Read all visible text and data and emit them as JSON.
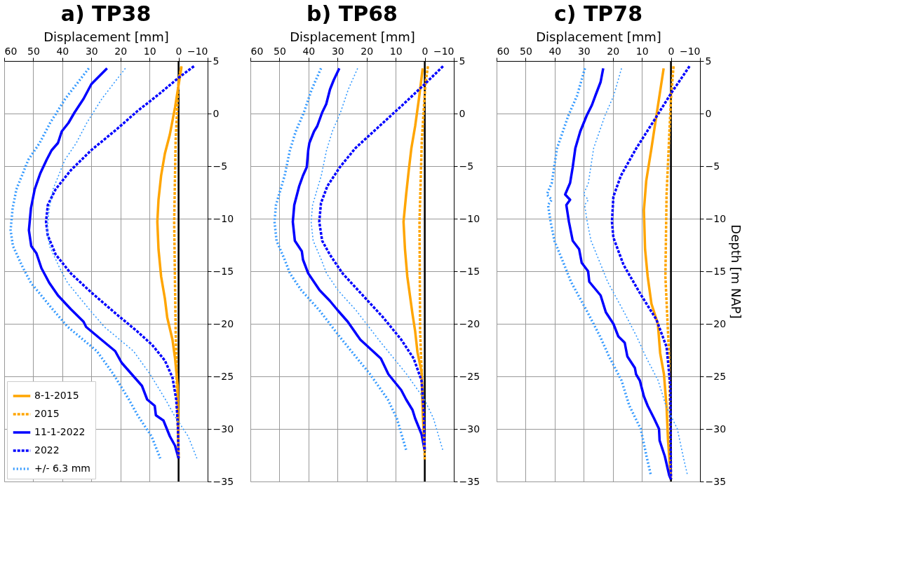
{
  "chart_data": [
    {
      "type": "line",
      "title": "a) TP38",
      "xlabel": "Displacement [mm]",
      "xlim": [
        60,
        -10
      ],
      "xticks": [
        60,
        50,
        40,
        30,
        20,
        10,
        0,
        -10
      ],
      "ylim": [
        -35,
        5
      ],
      "yticks": [
        -35,
        -30,
        -25,
        -20,
        -15,
        -10,
        -5,
        0,
        5
      ],
      "grid": true,
      "legend": "bottom left",
      "ref_lines": [
        {
          "axis": "x",
          "value": 0,
          "color": "#000000"
        }
      ],
      "series": [
        {
          "name": "8-1-2015",
          "color": "#ffa500",
          "line_style": "solid",
          "x": [
            -1.0,
            0,
            1.2,
            3.0,
            4.7,
            6.0,
            6.9,
            7.3,
            6.9,
            6.0,
            4.7,
            3.9,
            2.1,
            1.2,
            0.3,
            0
          ],
          "values": [
            4.4,
            2.7,
            0.6,
            -2.0,
            -3.8,
            -5.9,
            -8.2,
            -10.3,
            -12.9,
            -15.5,
            -17.6,
            -19.4,
            -21.5,
            -23.3,
            -25.9,
            -32.8
          ]
        },
        {
          "name": "2015",
          "color": "#ffa500",
          "line_style": "dashed",
          "x": [
            -1,
            0,
            1,
            1.5,
            1,
            0.5,
            0
          ],
          "values": [
            4.5,
            3.2,
            -2.5,
            -10.3,
            -20.7,
            -27.2,
            -32.8
          ]
        },
        {
          "name": "11-1-2022",
          "color": "#0000ff",
          "line_style": "solid",
          "x": [
            24.6,
            30,
            32.7,
            35.8,
            37.9,
            40.2,
            41.5,
            43.7,
            45.4,
            47.6,
            49.5,
            50.8,
            51.5,
            50.7,
            48.9,
            47.2,
            44.5,
            41.5,
            37.1,
            32.7,
            31.8,
            26.6,
            21.8,
            19.6,
            16.1,
            12.6,
            10.8,
            8.2,
            7.8,
            5.2,
            3.0,
            1.2,
            0
          ],
          "values": [
            4.3,
            2.8,
            1.4,
            0.1,
            -0.9,
            -1.7,
            -2.8,
            -3.5,
            -4.4,
            -5.7,
            -7.2,
            -9.0,
            -11.1,
            -12.6,
            -13.3,
            -14.7,
            -16.1,
            -17.3,
            -18.6,
            -19.8,
            -20.3,
            -21.5,
            -22.6,
            -23.7,
            -24.8,
            -25.9,
            -27.2,
            -27.8,
            -28.7,
            -29.2,
            -30.7,
            -31.6,
            -32.8
          ]
        },
        {
          "name": "2022",
          "color": "#0000ff",
          "line_style": "dashed",
          "x": [
            -5.3,
            0,
            6.5,
            14.3,
            21.3,
            30.1,
            37.1,
            42.3,
            45.0,
            45.6,
            45.0,
            42.3,
            37.1,
            30.1,
            21.3,
            14.3,
            9.1,
            4.7,
            2.1,
            0.8,
            0.2,
            0
          ],
          "values": [
            4.5,
            3.4,
            1.9,
            0.2,
            -1.5,
            -3.5,
            -5.4,
            -7.2,
            -8.7,
            -10.3,
            -11.6,
            -13.4,
            -15.2,
            -17.0,
            -19.1,
            -20.7,
            -22.0,
            -23.5,
            -25.1,
            -27.2,
            -29.8,
            -32.8
          ]
        },
        {
          "name": "+/- 6.3 mm",
          "color": "#3399ff",
          "line_style": "dotted",
          "x": [
            30.9,
            39.0,
            44.2,
            47.8,
            51.7,
            55.8,
            57.1,
            57.8,
            57.0,
            53.5,
            50.8,
            43.4,
            38.1,
            28.1,
            22.4,
            17.1,
            14.1,
            9.3,
            6.3
          ],
          "values": [
            4.3,
            1.4,
            -0.9,
            -2.8,
            -4.4,
            -7.2,
            -9.0,
            -11.1,
            -12.6,
            -14.7,
            -16.1,
            -18.6,
            -20.3,
            -22.6,
            -24.8,
            -27.2,
            -28.7,
            -30.7,
            -32.8
          ]
        },
        {
          "color": "#3399ff",
          "line_style": "dotted",
          "x": [
            18.3,
            26.4,
            31.6,
            35.2,
            39.1,
            43.2,
            44.5,
            45.2,
            44.4,
            40.9,
            38.2,
            30.8,
            25.5,
            15.5,
            9.8,
            4.5,
            1.5,
            -3.3,
            -6.3
          ],
          "values": [
            4.3,
            1.4,
            -0.9,
            -2.8,
            -4.4,
            -7.2,
            -9.0,
            -11.1,
            -12.6,
            -14.7,
            -16.1,
            -18.6,
            -20.3,
            -22.6,
            -24.8,
            -27.2,
            -28.7,
            -30.7,
            -32.8
          ]
        }
      ]
    },
    {
      "type": "line",
      "title": "b) TP68",
      "xlabel": "Displacement [mm]",
      "xlim": [
        60,
        -10
      ],
      "xticks": [
        60,
        50,
        40,
        30,
        20,
        10,
        0,
        -10
      ],
      "ylim": [
        -35,
        5
      ],
      "yticks": [
        -35,
        -30,
        -25,
        -20,
        -15,
        -10,
        -5,
        0,
        5
      ],
      "grid": true,
      "legend": "bottom left",
      "ref_lines": [
        {
          "axis": "x",
          "value": 0,
          "color": "#000000"
        }
      ],
      "series": [
        {
          "name": "8-1-2015",
          "color": "#ffa500",
          "line_style": "solid",
          "x": [
            0.7,
            2.0,
            3.3,
            4.6,
            5.5,
            6.4,
            7.3,
            6.8,
            6.0,
            4.2,
            3.3,
            2.5,
            1.1,
            0.7,
            0
          ],
          "values": [
            4.3,
            1.4,
            -1.2,
            -3.3,
            -5.4,
            -7.7,
            -10.3,
            -12.9,
            -15.5,
            -19.1,
            -20.7,
            -22.7,
            -24.6,
            -28.5,
            -32.1
          ]
        },
        {
          "name": "2015",
          "color": "#ffa500",
          "line_style": "dashed",
          "x": [
            -1.1,
            -0.2,
            1,
            1.8,
            1.6,
            0.7,
            0
          ],
          "values": [
            4.5,
            2.7,
            -2.5,
            -10.3,
            -20.7,
            -27.2,
            -32.9
          ]
        },
        {
          "name": "11-1-2022",
          "color": "#0000ff",
          "line_style": "solid",
          "x": [
            29.4,
            31.3,
            32.6,
            33.9,
            35.3,
            37.0,
            38.1,
            39.7,
            40.1,
            40.6,
            41.9,
            43.2,
            44.9,
            45.4,
            44.7,
            42.3,
            41.9,
            40.1,
            36.2,
            32.7,
            30.0,
            26.5,
            22.2,
            15.1,
            12.5,
            8.1,
            6.4,
            4.2,
            3.3,
            1.1,
            0
          ],
          "values": [
            4.3,
            3.2,
            2.3,
            0.9,
            0.1,
            -1.2,
            -1.7,
            -2.8,
            -3.5,
            -5.1,
            -5.9,
            -6.9,
            -8.7,
            -10.3,
            -12.1,
            -13.1,
            -13.9,
            -15.2,
            -16.8,
            -17.8,
            -18.7,
            -19.8,
            -21.5,
            -23.3,
            -24.8,
            -26.3,
            -27.2,
            -28.2,
            -29.0,
            -30.5,
            -32.1
          ]
        },
        {
          "name": "2022",
          "color": "#0000ff",
          "line_style": "dashed",
          "x": [
            -6.3,
            0,
            7.3,
            16.0,
            23.9,
            29.2,
            33.5,
            35.7,
            36.3,
            35.3,
            32.7,
            28.3,
            21.3,
            14.3,
            8.1,
            3.8,
            1.1,
            0.3,
            0
          ],
          "values": [
            4.5,
            2.8,
            0.9,
            -1.3,
            -3.3,
            -5.1,
            -6.9,
            -8.5,
            -10.3,
            -12.1,
            -13.4,
            -15.2,
            -17.3,
            -19.4,
            -21.5,
            -23.3,
            -25.4,
            -28.5,
            -32.1
          ]
        },
        {
          "name": "+/- 6.3 mm",
          "color": "#3399ff",
          "line_style": "dotted",
          "x": [
            35.7,
            38.9,
            41.6,
            44.4,
            46.4,
            48.2,
            51.2,
            51.7,
            51.0,
            48.2,
            46.4,
            42.5,
            36.3,
            28.5,
            18.8,
            12.7,
            9.6,
            6.3
          ],
          "values": [
            4.3,
            2.3,
            0.1,
            -1.7,
            -3.5,
            -5.9,
            -8.7,
            -10.3,
            -12.1,
            -13.9,
            -15.2,
            -16.8,
            -18.7,
            -21.5,
            -24.8,
            -27.2,
            -29.0,
            -32.1
          ]
        },
        {
          "color": "#3399ff",
          "line_style": "dotted",
          "x": [
            23.1,
            26.3,
            29.0,
            31.8,
            33.8,
            35.6,
            38.6,
            39.1,
            38.4,
            35.6,
            33.8,
            29.9,
            23.7,
            15.9,
            6.2,
            0.1,
            -3.0,
            -6.3
          ],
          "values": [
            4.3,
            2.3,
            0.1,
            -1.7,
            -3.5,
            -5.9,
            -8.7,
            -10.3,
            -12.1,
            -13.9,
            -15.2,
            -16.8,
            -18.7,
            -21.5,
            -24.8,
            -27.2,
            -29.0,
            -32.1
          ]
        }
      ]
    },
    {
      "type": "line",
      "title": "c) TP78",
      "xlabel": "Displacement [mm]",
      "ylabel": "Depth [m NAP]",
      "xlim": [
        60,
        -10
      ],
      "xticks": [
        60,
        50,
        40,
        30,
        20,
        10,
        0,
        -10
      ],
      "ylim": [
        -35,
        5
      ],
      "yticks": [
        -35,
        -30,
        -25,
        -20,
        -15,
        -10,
        -5,
        0,
        5
      ],
      "grid": true,
      "legend": "bottom left",
      "ref_lines": [
        {
          "axis": "x",
          "value": 0,
          "color": "#000000"
        }
      ],
      "series": [
        {
          "name": "8-1-2015",
          "color": "#ffa500",
          "line_style": "solid",
          "x": [
            2.5,
            5.0,
            6.7,
            8.5,
            9.3,
            8.9,
            8.0,
            6.7,
            4.5,
            3.7,
            2.4,
            1.5,
            1.0,
            0
          ],
          "values": [
            4.3,
            -0.2,
            -3.3,
            -6.4,
            -9.2,
            -12.9,
            -15.5,
            -18.1,
            -20.0,
            -22.8,
            -24.8,
            -27.9,
            -31.1,
            -34.8
          ]
        },
        {
          "name": "2015",
          "color": "#ffa500",
          "line_style": "dashed",
          "x": [
            -0.9,
            0,
            1.5,
            1.9,
            0.6,
            0
          ],
          "values": [
            4.5,
            1.4,
            -7.7,
            -15.5,
            -23.3,
            -34.8
          ]
        },
        {
          "name": "11-1-2022",
          "color": "#0000ff",
          "line_style": "solid",
          "x": [
            23.3,
            24.2,
            26.0,
            27.2,
            29.0,
            31.2,
            32.9,
            33.8,
            34.7,
            36.4,
            34.7,
            36.0,
            35.1,
            33.8,
            31.6,
            30.7,
            28.5,
            28.1,
            24.2,
            22.4,
            19.8,
            18.1,
            15.9,
            15.0,
            12.4,
            12.0,
            10.7,
            9.3,
            8.0,
            5.8,
            4.1,
            3.9,
            2.1,
            0.6,
            0
          ],
          "values": [
            4.3,
            3.0,
            1.7,
            0.8,
            -0.2,
            -1.7,
            -3.3,
            -5.1,
            -6.6,
            -7.7,
            -8.2,
            -8.7,
            -10.3,
            -12.1,
            -12.9,
            -14.2,
            -15.0,
            -16.0,
            -17.3,
            -18.9,
            -20.0,
            -21.2,
            -21.8,
            -23.1,
            -24.2,
            -24.8,
            -25.4,
            -26.9,
            -27.8,
            -29.0,
            -30.0,
            -31.1,
            -32.6,
            -34.4,
            -34.8
          ]
        },
        {
          "name": "2022",
          "color": "#0000ff",
          "line_style": "dashed",
          "x": [
            -6.4,
            0,
            5.9,
            11.9,
            17.2,
            19.8,
            20.3,
            19.8,
            16.3,
            10.2,
            5.0,
            1.5,
            0.2,
            0
          ],
          "values": [
            4.5,
            1.9,
            -0.7,
            -3.3,
            -5.9,
            -7.9,
            -10.3,
            -11.8,
            -14.4,
            -17.3,
            -19.6,
            -22.2,
            -25.9,
            -34.8
          ]
        },
        {
          "name": "+/- 6.3 mm",
          "color": "#3399ff",
          "line_style": "dotted",
          "x": [
            29.6,
            32.3,
            35.3,
            39.2,
            41.0,
            42.7,
            41.0,
            42.3,
            41.4,
            40.1,
            37.0,
            34.4,
            28.7,
            24.4,
            21.3,
            17.0,
            14.3,
            10.4,
            8.4,
            6.9
          ],
          "values": [
            4.3,
            1.7,
            -0.2,
            -3.3,
            -6.6,
            -7.7,
            -8.2,
            -8.7,
            -10.3,
            -12.1,
            -14.2,
            -16.0,
            -18.9,
            -21.2,
            -23.1,
            -25.4,
            -27.8,
            -30.0,
            -32.6,
            -34.4
          ]
        },
        {
          "color": "#3399ff",
          "line_style": "dotted",
          "x": [
            17.0,
            19.7,
            22.7,
            26.6,
            28.4,
            30.1,
            28.4,
            29.7,
            28.8,
            27.5,
            24.4,
            21.8,
            16.1,
            11.8,
            8.7,
            4.4,
            1.7,
            -2.2,
            -4.2,
            -5.7
          ],
          "values": [
            4.3,
            1.7,
            -0.2,
            -3.3,
            -6.6,
            -7.7,
            -8.2,
            -8.7,
            -10.3,
            -12.1,
            -14.2,
            -16.0,
            -18.9,
            -21.2,
            -23.1,
            -25.4,
            -27.8,
            -30.0,
            -32.6,
            -34.4
          ]
        }
      ]
    }
  ]
}
